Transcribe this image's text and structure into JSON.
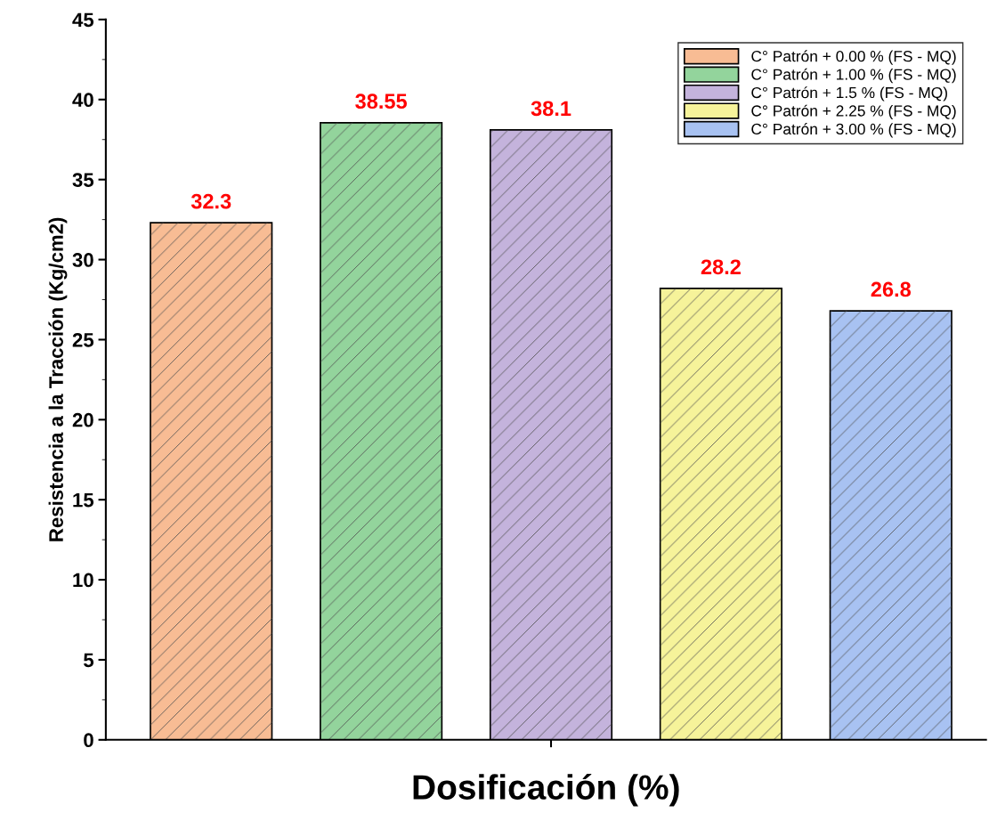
{
  "chart_data": {
    "type": "bar",
    "xlabel": "Dosificación (%)",
    "ylabel": "Resistencia a la Tracción (Kg/cm2)",
    "categories": [
      null,
      null,
      null,
      null,
      null
    ],
    "series": [
      {
        "name": "C° Patrón + 0.00 % (FS - MQ)",
        "color": "#f8bc94",
        "values": [
          32.3,
          null,
          null,
          null,
          null
        ]
      },
      {
        "name": "C° Patrón + 1.00 % (FS - MQ)",
        "color": "#93d49c",
        "values": [
          null,
          38.55,
          null,
          null,
          null
        ]
      },
      {
        "name": "C° Patrón + 1.5 % (FS - MQ)",
        "color": "#c4b3dc",
        "values": [
          null,
          null,
          38.1,
          null,
          null
        ]
      },
      {
        "name": "C° Patrón + 2.25 % (FS - MQ)",
        "color": "#f6f39a",
        "values": [
          null,
          null,
          null,
          28.2,
          null
        ]
      },
      {
        "name": "C° Patrón + 3.00 % (FS - MQ)",
        "color": "#a8c2f2",
        "values": [
          null,
          null,
          null,
          null,
          26.8
        ]
      }
    ],
    "ylim": [
      0,
      45
    ],
    "yticks": [
      0,
      5,
      10,
      15,
      20,
      25,
      30,
      35,
      40,
      45
    ],
    "data_labels": true,
    "legend": "top right",
    "grid": false
  }
}
